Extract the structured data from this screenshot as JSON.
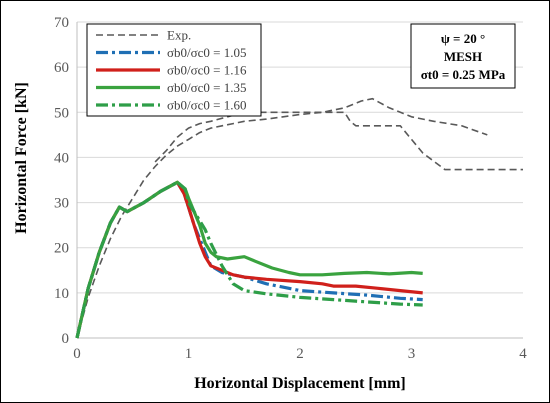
{
  "chart_data": {
    "type": "line",
    "title": "",
    "xlabel": "Horizontal Displacement [mm]",
    "ylabel": "Horizontal Force [kN]",
    "xlim": [
      0,
      4
    ],
    "ylim": [
      0,
      70
    ],
    "xticks": [
      0,
      1,
      2,
      3,
      4
    ],
    "yticks": [
      0,
      10,
      20,
      30,
      40,
      50,
      60,
      70
    ],
    "grid": {
      "horizontal": true,
      "vertical": false,
      "color": "#d9d9d9"
    },
    "legend_position": "top-left",
    "annotation": {
      "lines": [
        "ψ = 20 °",
        "MESH",
        "σt0 = 0.25 MPa"
      ],
      "position": "top-right"
    },
    "series": [
      {
        "name": "Exp.",
        "style": "dashed",
        "color": "#595959",
        "curves": [
          {
            "x": [
              0,
              0.1,
              0.2,
              0.3,
              0.4,
              0.5,
              0.6,
              0.7,
              0.8,
              0.9,
              1.0,
              1.1,
              1.2,
              1.3,
              1.4,
              1.5,
              1.7,
              2.0,
              2.2,
              2.4,
              2.55,
              2.65,
              2.8,
              3.0,
              3.2,
              3.45,
              3.68
            ],
            "y": [
              0,
              9,
              16,
              22,
              27,
              31,
              35,
              38,
              40.5,
              42.5,
              44,
              45.5,
              46.5,
              47,
              47.5,
              48,
              48.5,
              49.5,
              50,
              51,
              52.5,
              53,
              51,
              49,
              48,
              47,
              45
            ]
          },
          {
            "x": [
              0.7,
              0.8,
              0.9,
              1.0,
              1.1,
              1.2,
              1.35,
              1.5,
              2.0,
              2.4,
              2.45,
              2.5,
              2.9,
              3.0,
              3.1,
              3.3,
              3.7,
              4.0
            ],
            "y": [
              39,
              41.5,
              44.5,
              46.5,
              47.5,
              48,
              49,
              50,
              50,
              50,
              48,
              47,
              47,
              44,
              41,
              37.3,
              37.3,
              37.3
            ]
          }
        ]
      },
      {
        "name": "σb0/σc0 = 1.05",
        "style": "dashdot",
        "color": "#1f6fb4",
        "x": [
          0,
          0.1,
          0.2,
          0.3,
          0.38,
          0.45,
          0.6,
          0.75,
          0.9,
          0.96,
          1.0,
          1.05,
          1.1,
          1.2,
          1.3,
          1.5,
          1.7,
          2.0,
          2.3,
          2.6,
          2.9,
          3.1
        ],
        "y": [
          0,
          11,
          19,
          25.5,
          29,
          28,
          30,
          32.5,
          34.5,
          32,
          29,
          25,
          22,
          16,
          14.5,
          13.5,
          12,
          10.5,
          10,
          9.5,
          8.8,
          8.5
        ]
      },
      {
        "name": "σb0/σc0 = 1.16",
        "style": "solid",
        "color": "#d0201b",
        "x": [
          0,
          0.1,
          0.2,
          0.3,
          0.38,
          0.45,
          0.6,
          0.75,
          0.9,
          0.96,
          1.0,
          1.05,
          1.1,
          1.15,
          1.2,
          1.3,
          1.4,
          1.5,
          1.7,
          2.0,
          2.2,
          2.3,
          2.5,
          2.7,
          2.9,
          3.1
        ],
        "y": [
          0,
          11,
          19,
          25.5,
          29,
          28,
          30,
          32.5,
          34.5,
          32,
          29,
          25,
          21,
          18,
          16,
          15,
          14,
          13.5,
          13,
          12.5,
          12,
          11.5,
          11.5,
          11,
          10.5,
          10
        ]
      },
      {
        "name": "σb0/σc0 = 1.35",
        "style": "solid",
        "color": "#3aa33f",
        "x": [
          0,
          0.1,
          0.2,
          0.3,
          0.38,
          0.45,
          0.6,
          0.75,
          0.9,
          0.97,
          1.0,
          1.05,
          1.1,
          1.15,
          1.2,
          1.25,
          1.35,
          1.5,
          1.6,
          1.75,
          1.9,
          2.0,
          2.2,
          2.4,
          2.6,
          2.8,
          3.0,
          3.1
        ],
        "y": [
          0,
          11,
          19,
          25.5,
          29,
          28,
          30,
          32.5,
          34.5,
          33,
          31,
          28,
          25,
          21,
          19,
          18,
          17.5,
          18,
          17,
          15.5,
          14.5,
          14,
          14,
          14.3,
          14.5,
          14.2,
          14.5,
          14.3
        ]
      },
      {
        "name": "σb0/σc0 = 1.60",
        "style": "dashdot",
        "color": "#2e9e48",
        "x": [
          0,
          0.1,
          0.2,
          0.3,
          0.38,
          0.45,
          0.6,
          0.75,
          0.9,
          0.97,
          1.0,
          1.05,
          1.1,
          1.15,
          1.2,
          1.3,
          1.4,
          1.5,
          1.7,
          2.0,
          2.3,
          2.6,
          2.9,
          3.1
        ],
        "y": [
          0,
          11,
          19,
          25.5,
          29,
          28,
          30,
          32.5,
          34.5,
          33,
          30,
          28,
          26,
          24,
          21,
          16,
          12,
          10.5,
          9.8,
          9,
          8.5,
          8,
          7.5,
          7.3
        ]
      }
    ]
  }
}
